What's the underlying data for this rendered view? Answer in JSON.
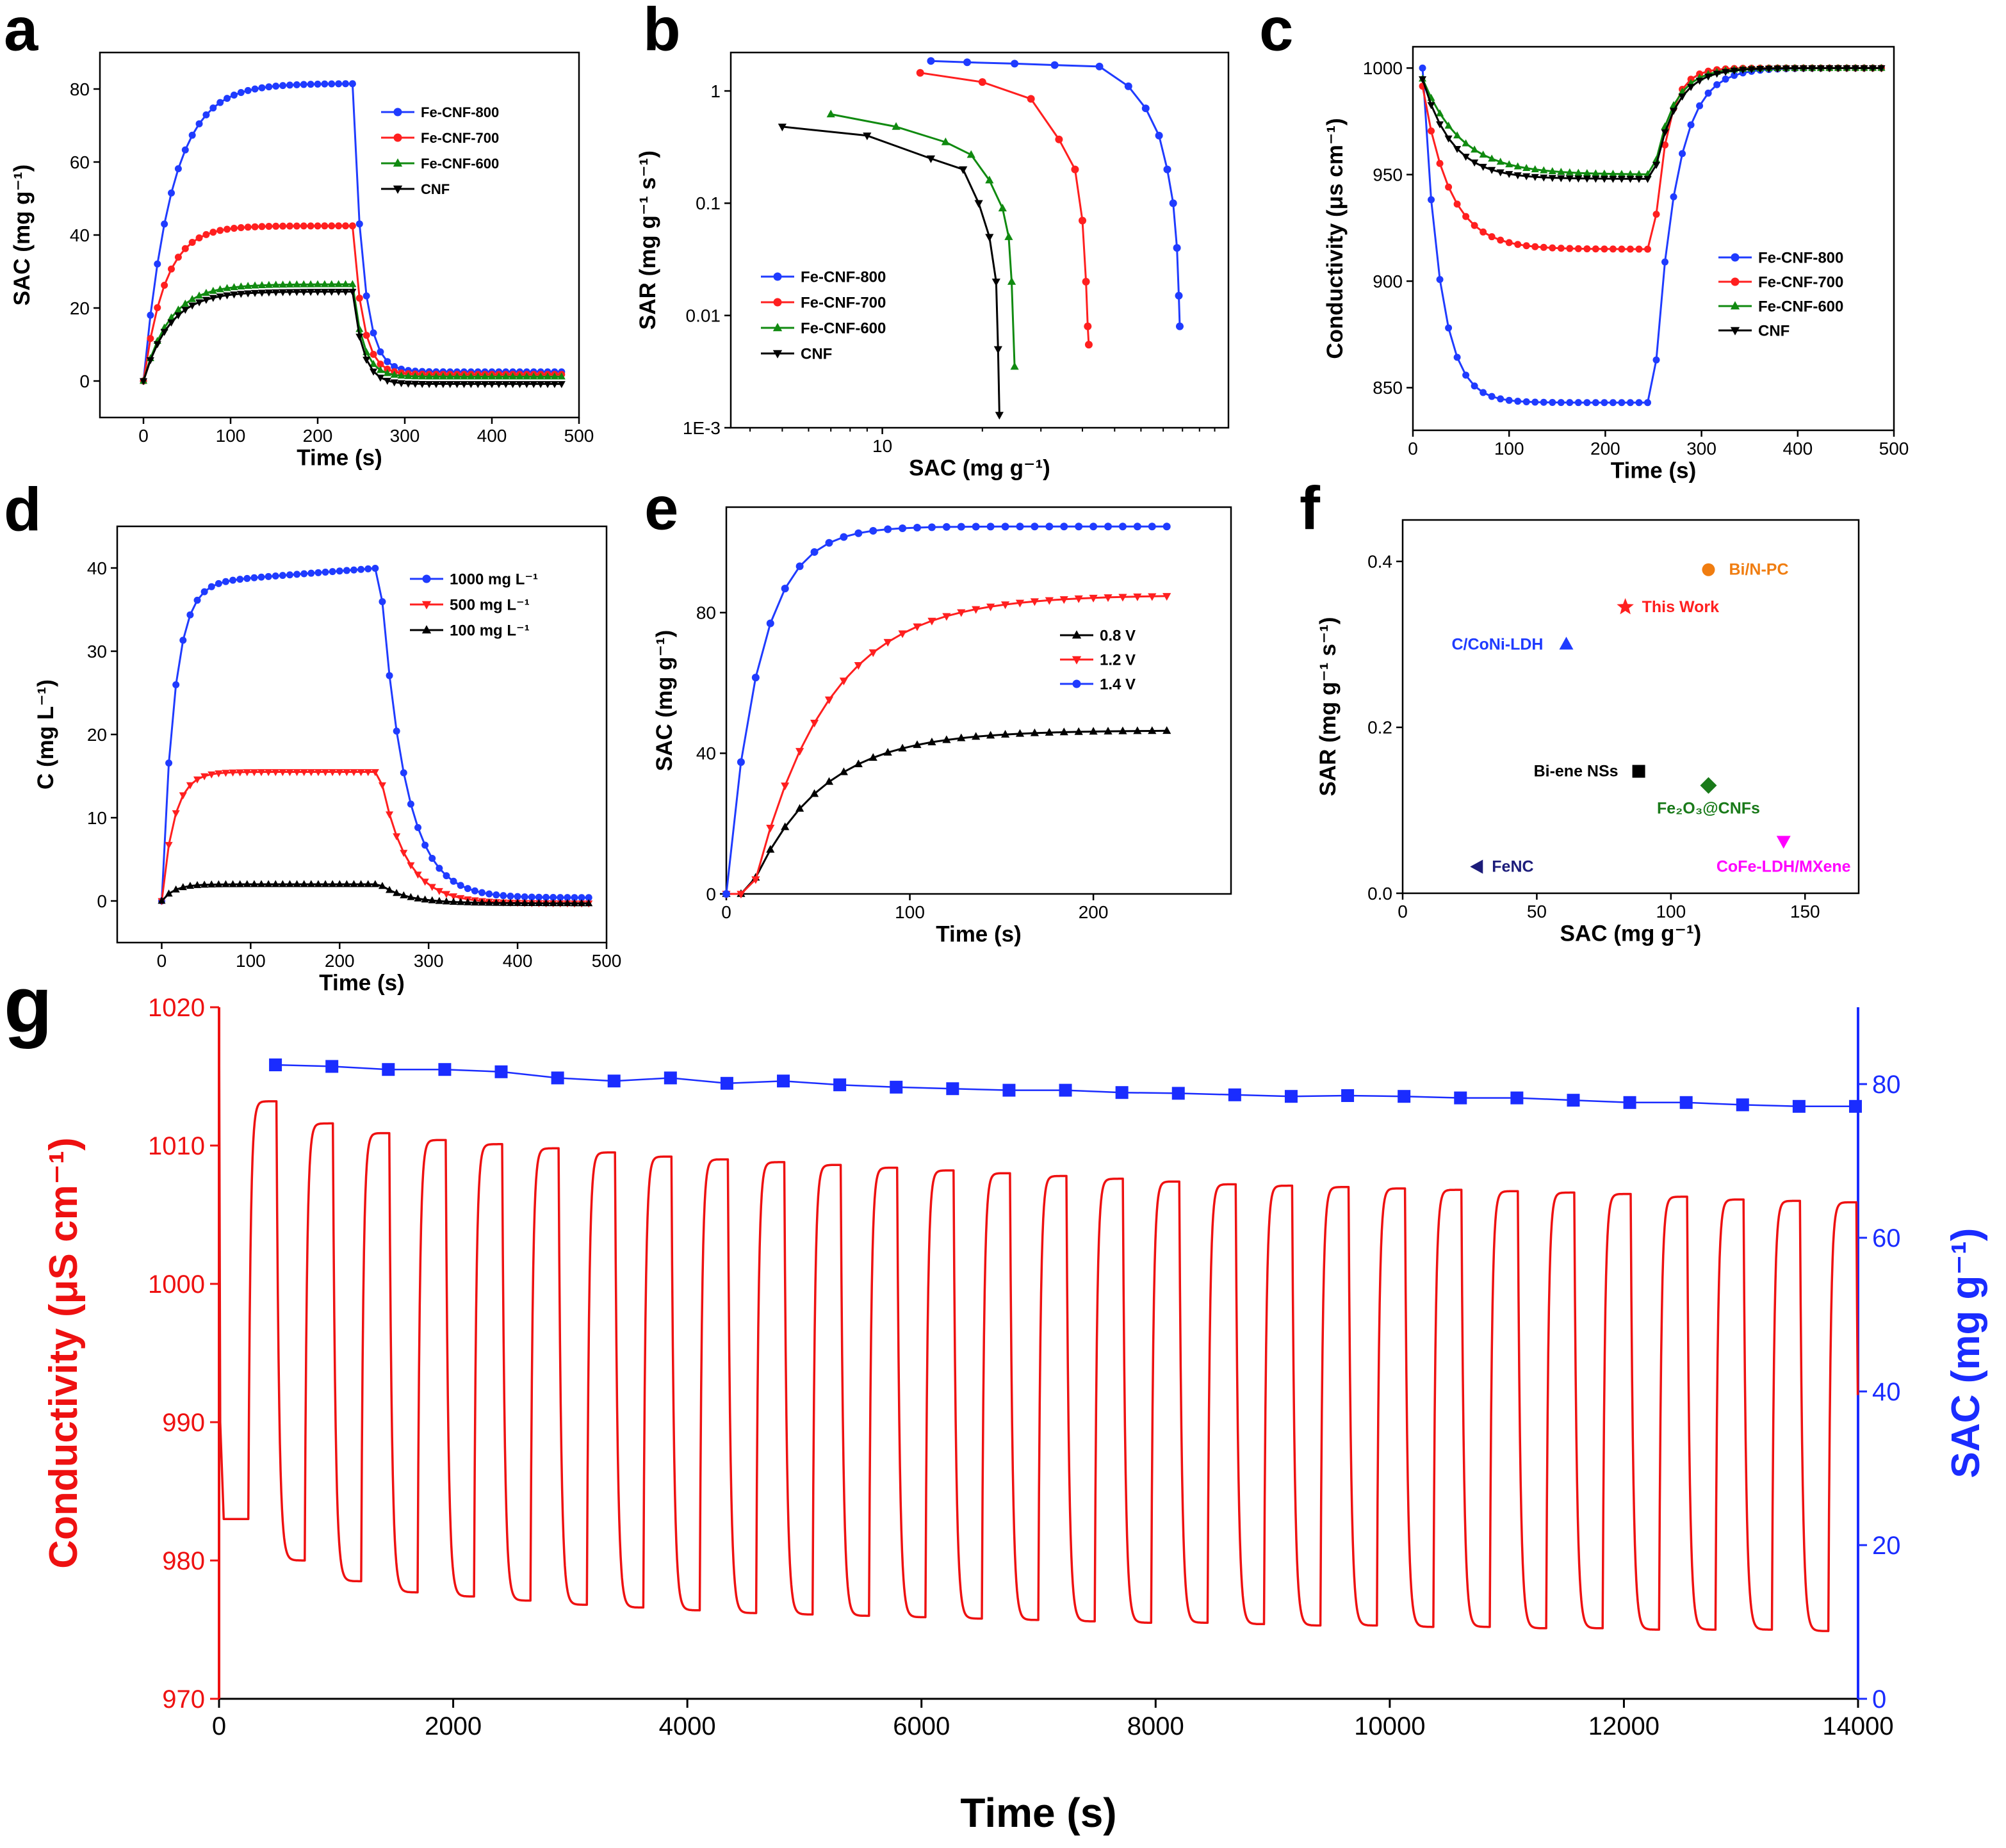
{
  "colors": {
    "blue": "#1f3bff",
    "red": "#ff1f1f",
    "green": "#108a10",
    "black": "#000000",
    "orange": "#f07d10",
    "navy": "#1c1c7a",
    "darkgreen": "#1a7a1a",
    "magenta": "#ff00ff",
    "g_red": "#ee1111",
    "g_blue": "#1a2cff"
  },
  "chart_data": [
    {
      "panel": "a",
      "type": "line",
      "xlabel": "Time (s)",
      "ylabel": "SAC (mg g⁻¹)",
      "xlim": [
        -50,
        500
      ],
      "ylim": [
        -10,
        90
      ],
      "xticks": [
        0,
        100,
        200,
        300,
        400,
        500
      ],
      "yticks": [
        0,
        20,
        40,
        60,
        80
      ],
      "legend_position": "upper-right",
      "series": [
        {
          "name": "Fe-CNF-800",
          "color": "blue",
          "marker": "circle",
          "plateau": 81.5,
          "final": 2.5
        },
        {
          "name": "Fe-CNF-700",
          "color": "red",
          "marker": "circle",
          "plateau": 42.5,
          "final": 1.8
        },
        {
          "name": "Fe-CNF-600",
          "color": "green",
          "marker": "triangle-up",
          "plateau": 26.5,
          "final": 1.2
        },
        {
          "name": "CNF",
          "color": "black",
          "marker": "triangle-down",
          "plateau": 24.5,
          "final": -0.8
        }
      ]
    },
    {
      "panel": "b",
      "type": "line",
      "xlabel": "SAC (mg g⁻¹)",
      "ylabel": "SAR (mg g⁻¹ s⁻¹)",
      "xscale": "log",
      "yscale": "log",
      "xlim": [
        3.5,
        110
      ],
      "ylim": [
        0.001,
        2.2
      ],
      "xticks": [
        10
      ],
      "yticks": [
        0.001,
        0.01,
        0.1,
        1
      ],
      "yticklabels": [
        "1E-3",
        "0.01",
        "0.1",
        "1"
      ],
      "legend_position": "lower-left",
      "series": [
        {
          "name": "Fe-CNF-800",
          "color": "blue",
          "marker": "circle",
          "points": [
            [
              14,
              1.85
            ],
            [
              18,
              1.8
            ],
            [
              25,
              1.75
            ],
            [
              33,
              1.7
            ],
            [
              45,
              1.65
            ],
            [
              55,
              1.1
            ],
            [
              62,
              0.7
            ],
            [
              68,
              0.4
            ],
            [
              72,
              0.2
            ],
            [
              75,
              0.1
            ],
            [
              77,
              0.04
            ],
            [
              78,
              0.015
            ],
            [
              78.5,
              0.008
            ]
          ]
        },
        {
          "name": "Fe-CNF-700",
          "color": "red",
          "marker": "circle",
          "points": [
            [
              13,
              1.45
            ],
            [
              20,
              1.2
            ],
            [
              28,
              0.85
            ],
            [
              34,
              0.37
            ],
            [
              38,
              0.2
            ],
            [
              40,
              0.07
            ],
            [
              41,
              0.02
            ],
            [
              41.5,
              0.008
            ],
            [
              41.8,
              0.0055
            ]
          ]
        },
        {
          "name": "Fe-CNF-600",
          "color": "green",
          "marker": "triangle-up",
          "points": [
            [
              7,
              0.62
            ],
            [
              11,
              0.48
            ],
            [
              15.5,
              0.35
            ],
            [
              18.5,
              0.27
            ],
            [
              21,
              0.16
            ],
            [
              23,
              0.09
            ],
            [
              24,
              0.05
            ],
            [
              24.5,
              0.02
            ],
            [
              25,
              0.0035
            ]
          ]
        },
        {
          "name": "CNF",
          "color": "black",
          "marker": "triangle-down",
          "points": [
            [
              5,
              0.48
            ],
            [
              9,
              0.4
            ],
            [
              14,
              0.25
            ],
            [
              17.5,
              0.2
            ],
            [
              19.5,
              0.1
            ],
            [
              21,
              0.05
            ],
            [
              22,
              0.02
            ],
            [
              22.3,
              0.005
            ],
            [
              22.5,
              0.0013
            ]
          ]
        }
      ]
    },
    {
      "panel": "c",
      "type": "line",
      "xlabel": "Time (s)",
      "ylabel": "Conductivity (μs cm⁻¹)",
      "xlim": [
        0,
        500
      ],
      "ylim": [
        830,
        1010
      ],
      "xticks": [
        0,
        100,
        200,
        300,
        400,
        500
      ],
      "yticks": [
        850,
        900,
        950,
        1000
      ],
      "legend_position": "lower-right",
      "series": [
        {
          "name": "Fe-CNF-800",
          "color": "blue",
          "marker": "circle",
          "plateau": 843
        },
        {
          "name": "Fe-CNF-700",
          "color": "red",
          "marker": "circle",
          "plateau": 915
        },
        {
          "name": "Fe-CNF-600",
          "color": "green",
          "marker": "triangle-up",
          "plateau": 950
        },
        {
          "name": "CNF",
          "color": "black",
          "marker": "triangle-down",
          "plateau": 948
        }
      ]
    },
    {
      "panel": "d",
      "type": "line",
      "xlabel": "Time (s)",
      "ylabel": "C (mg L⁻¹)",
      "xlim": [
        -50,
        500
      ],
      "ylim": [
        -5,
        45
      ],
      "xticks": [
        0,
        100,
        200,
        300,
        400,
        500
      ],
      "yticks": [
        0,
        10,
        20,
        30,
        40
      ],
      "legend_position": "upper-right",
      "series": [
        {
          "name": "1000 mg L⁻¹",
          "color": "blue",
          "marker": "circle",
          "plateau_start": 38,
          "plateau_end": 40
        },
        {
          "name": "500 mg L⁻¹",
          "color": "red",
          "marker": "triangle-down",
          "plateau_start": 15.5,
          "plateau_end": 15.5
        },
        {
          "name": "100 mg L⁻¹",
          "color": "black",
          "marker": "triangle-up",
          "plateau_start": 2,
          "plateau_end": 2
        }
      ]
    },
    {
      "panel": "e",
      "type": "line",
      "xlabel": "Time (s)",
      "ylabel": "SAC (mg g⁻¹)",
      "xlim": [
        0,
        275
      ],
      "ylim": [
        0,
        110
      ],
      "xticks": [
        0,
        100,
        200
      ],
      "yticks": [
        0,
        40,
        80
      ],
      "legend_position": "center-right",
      "series": [
        {
          "name": "0.8 V",
          "color": "black",
          "marker": "triangle-up",
          "final": 46.5
        },
        {
          "name": "1.2 V",
          "color": "red",
          "marker": "triangle-down",
          "final": 85
        },
        {
          "name": "1.4 V",
          "color": "blue",
          "marker": "circle",
          "final": 104.5
        }
      ]
    },
    {
      "panel": "f",
      "type": "scatter",
      "xlabel": "SAC (mg g⁻¹)",
      "ylabel": "SAR (mg g⁻¹ s⁻¹)",
      "xlim": [
        0,
        170
      ],
      "ylim": [
        0,
        0.45
      ],
      "xticks": [
        0,
        50,
        100,
        150
      ],
      "yticks": [
        0.0,
        0.2,
        0.4
      ],
      "points": [
        {
          "label": "Bi/N-PC",
          "x": 114,
          "y": 0.39,
          "color": "orange",
          "marker": "circle"
        },
        {
          "label": "This Work",
          "x": 83,
          "y": 0.345,
          "color": "red",
          "marker": "star"
        },
        {
          "label": "C/CoNi-LDH",
          "x": 61,
          "y": 0.3,
          "color": "blue",
          "marker": "triangle-up"
        },
        {
          "label": "Bi-ene NSs",
          "x": 88,
          "y": 0.147,
          "color": "black",
          "marker": "square"
        },
        {
          "label": "Fe₂O₃@CNFs",
          "x": 114,
          "y": 0.13,
          "color": "darkgreen",
          "marker": "diamond"
        },
        {
          "label": "CoFe-LDH/MXene",
          "x": 142,
          "y": 0.063,
          "color": "magenta",
          "marker": "triangle-down"
        },
        {
          "label": "FeNC",
          "x": 28,
          "y": 0.032,
          "color": "navy",
          "marker": "triangle-left"
        }
      ]
    },
    {
      "panel": "g",
      "type": "line",
      "xlabel": "Time (s)",
      "ylabel": "Conductivity (μS cm⁻¹)",
      "y2label": "SAC (mg g⁻¹)",
      "xlim": [
        0,
        14000
      ],
      "ylim": [
        970,
        1020
      ],
      "y2lim": [
        0,
        90
      ],
      "xticks": [
        0,
        2000,
        4000,
        6000,
        8000,
        10000,
        12000,
        14000
      ],
      "yticks": [
        970,
        980,
        990,
        1000,
        1010,
        1020
      ],
      "y2ticks": [
        0,
        20,
        40,
        60,
        80
      ],
      "conductivity": {
        "color": "g_red",
        "cycles": 29,
        "cycle_period": 482,
        "first_cycle_start": 250,
        "start_level": 983,
        "peaks": [
          1013.2,
          1011.6,
          1010.9,
          1010.4,
          1010.1,
          1009.8,
          1009.5,
          1009.2,
          1009.0,
          1008.8,
          1008.6,
          1008.4,
          1008.2,
          1008.0,
          1007.8,
          1007.6,
          1007.4,
          1007.2,
          1007.1,
          1007.0,
          1006.9,
          1006.8,
          1006.7,
          1006.6,
          1006.5,
          1006.3,
          1006.1,
          1006.0,
          1005.9
        ],
        "troughs": [
          980.0,
          978.5,
          977.7,
          977.4,
          977.1,
          976.8,
          976.6,
          976.4,
          976.2,
          976.1,
          976.0,
          975.9,
          975.8,
          975.7,
          975.6,
          975.5,
          975.5,
          975.4,
          975.3,
          975.3,
          975.2,
          975.2,
          975.1,
          975.1,
          975.0,
          975.0,
          975.0,
          974.9
        ]
      },
      "sac": {
        "color": "g_blue",
        "x": [
          482,
          964,
          1446,
          1928,
          2410,
          2892,
          3374,
          3856,
          4338,
          4820,
          5302,
          5784,
          6266,
          6748,
          7230,
          7712,
          8194,
          8676,
          9158,
          9640,
          10122,
          10604,
          11086,
          11568,
          12050,
          12532,
          13014,
          13496,
          13978
        ],
        "y": [
          82.5,
          82.3,
          81.9,
          81.9,
          81.6,
          80.8,
          80.4,
          80.8,
          80.1,
          80.4,
          79.9,
          79.6,
          79.4,
          79.2,
          79.2,
          78.9,
          78.8,
          78.6,
          78.4,
          78.5,
          78.4,
          78.2,
          78.2,
          77.9,
          77.6,
          77.6,
          77.3,
          77.1,
          77.1
        ]
      }
    }
  ]
}
